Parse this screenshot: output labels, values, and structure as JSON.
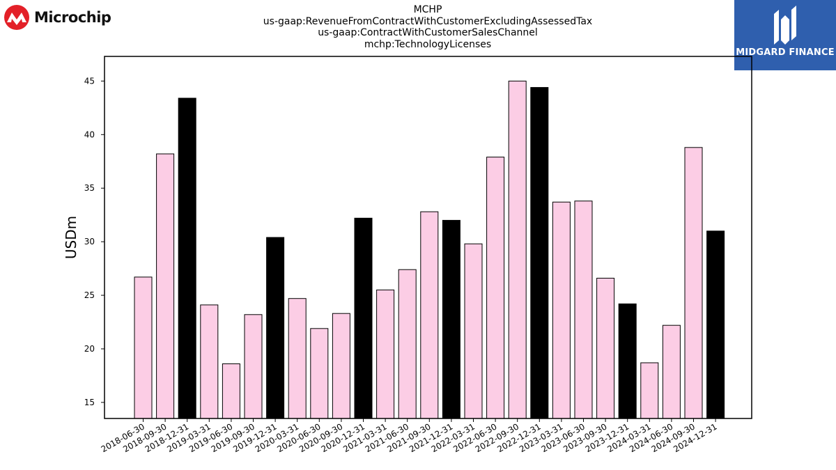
{
  "header": {
    "title_lines": [
      "MCHP",
      "us-gaap:RevenueFromContractWithCustomerExcludingAssessedTax",
      "us-gaap:ContractWithCustomerSalesChannel",
      "mchp:TechnologyLicenses"
    ],
    "left_logo_text": "Microchip",
    "right_logo_text": "MIDGARD FINANCE"
  },
  "colors": {
    "quarter_bar": "#fccde5",
    "year_end_bar": "#000000",
    "bar_edge": "#000000",
    "midgard_blue": "#2f5fae",
    "microchip_red": "#e32028"
  },
  "chart_data": {
    "type": "bar",
    "title": "MCHP us-gaap:RevenueFromContractWithCustomerExcludingAssessedTax us-gaap:ContractWithCustomerSalesChannel mchp:TechnologyLicenses",
    "xlabel": "",
    "ylabel": "USDm",
    "ylim": [
      13.5,
      47.3
    ],
    "yticks": [
      15,
      20,
      25,
      30,
      35,
      40,
      45
    ],
    "grid": false,
    "legend": "none",
    "categories": [
      "2018-06-30",
      "2018-09-30",
      "2018-12-31",
      "2019-03-31",
      "2019-06-30",
      "2019-09-30",
      "2019-12-31",
      "2020-03-31",
      "2020-06-30",
      "2020-09-30",
      "2020-12-31",
      "2021-03-31",
      "2021-06-30",
      "2021-09-30",
      "2021-12-31",
      "2022-03-31",
      "2022-06-30",
      "2022-09-30",
      "2022-12-31",
      "2023-03-31",
      "2023-06-30",
      "2023-09-30",
      "2023-12-31",
      "2024-03-31",
      "2024-06-30",
      "2024-09-30",
      "2024-12-31"
    ],
    "values": [
      26.7,
      38.2,
      43.4,
      24.1,
      18.6,
      23.2,
      30.4,
      24.7,
      21.9,
      23.3,
      32.2,
      25.5,
      27.4,
      32.8,
      32.0,
      29.8,
      37.9,
      45.0,
      44.4,
      33.7,
      33.8,
      26.6,
      24.2,
      18.7,
      22.2,
      38.8,
      31.0
    ],
    "year_end": [
      false,
      false,
      true,
      false,
      false,
      false,
      true,
      false,
      false,
      false,
      true,
      false,
      false,
      false,
      true,
      false,
      false,
      false,
      true,
      false,
      false,
      false,
      true,
      false,
      false,
      false,
      true
    ]
  }
}
